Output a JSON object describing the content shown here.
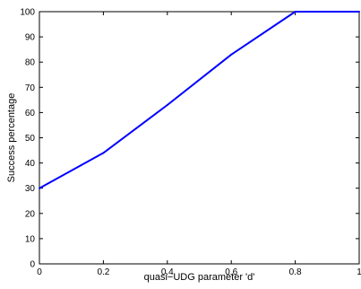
{
  "chart_data": {
    "type": "line",
    "title": "",
    "xlabel": "quasi−UDG parameter 'd'",
    "ylabel": "Success percentage",
    "xlim": [
      0,
      1
    ],
    "ylim": [
      0,
      100
    ],
    "xticks": [
      "0",
      "0.2",
      "0.4",
      "0.6",
      "0.8",
      "1"
    ],
    "yticks": [
      "0",
      "10",
      "20",
      "30",
      "40",
      "50",
      "60",
      "70",
      "80",
      "90",
      "100"
    ],
    "grid": false,
    "series": [
      {
        "color": "#0000ff",
        "x": [
          0,
          0.2,
          0.4,
          0.6,
          0.8,
          1.0
        ],
        "y": [
          30,
          44,
          63,
          83,
          100,
          100
        ]
      }
    ]
  }
}
